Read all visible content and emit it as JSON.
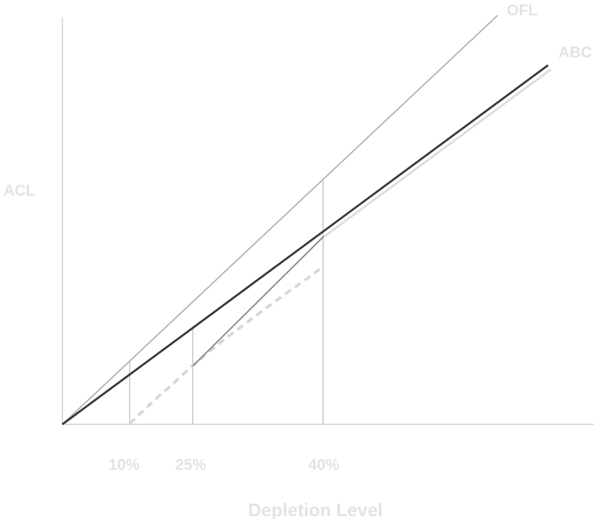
{
  "labels": {
    "ofl": "OFL",
    "abc": "ABC",
    "y_axis": "ACL",
    "x_axis": "Depletion Level",
    "tick_10": "10%",
    "tick_25": "25%",
    "tick_40": "40%"
  },
  "colors": {
    "axis": "#d9d9d9",
    "ofl_line": "#b5b5b5",
    "abc_line": "#3a3a3a",
    "abc_shadow": "#dcdcdc",
    "drop_lines": "#d2d2d2",
    "dashed_curve": "#d6d6d6",
    "ramp_segment": "#888888",
    "label_text": "#e3e3e3"
  }
}
